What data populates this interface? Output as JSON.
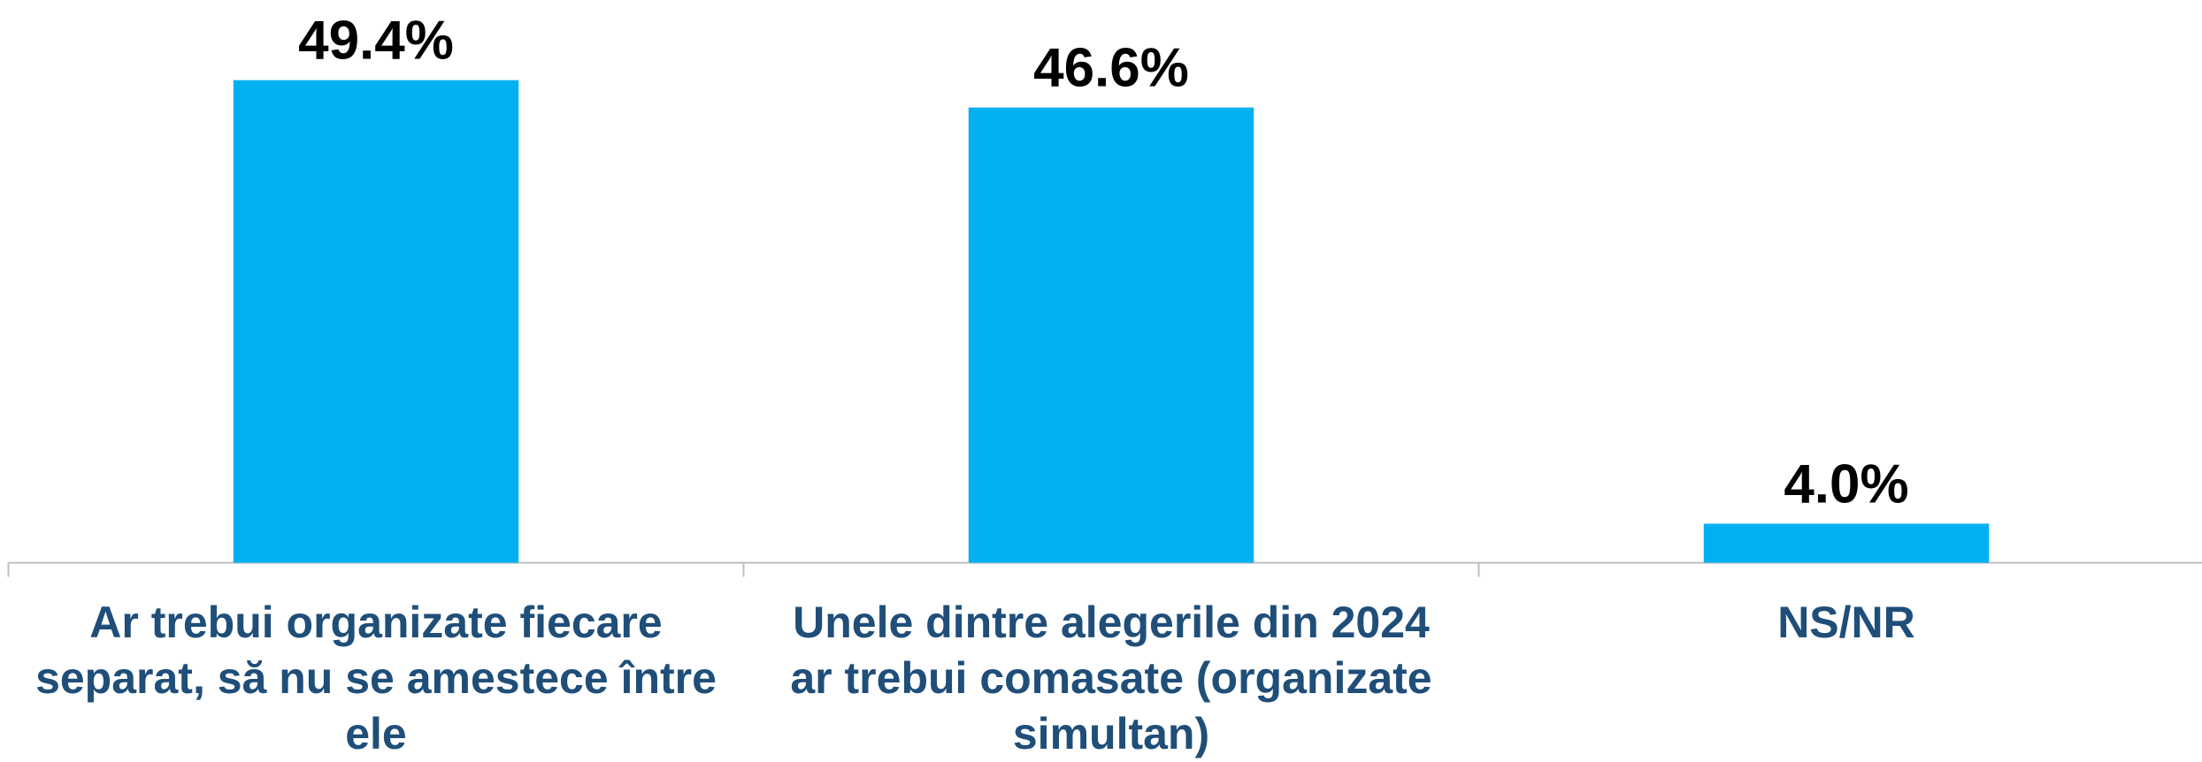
{
  "chart_data": {
    "type": "bar",
    "categories": [
      "Ar trebui organizate fiecare separat, să nu se amestece între ele",
      "Unele dintre alegerile din 2024 ar trebui comasate (organizate simultan)",
      "NS/NR"
    ],
    "values": [
      49.4,
      46.6,
      4.0
    ],
    "value_labels": [
      "49.4%",
      "46.6%",
      "4.0%"
    ],
    "color": "#00b0f0",
    "ylim": [
      0,
      55
    ]
  }
}
